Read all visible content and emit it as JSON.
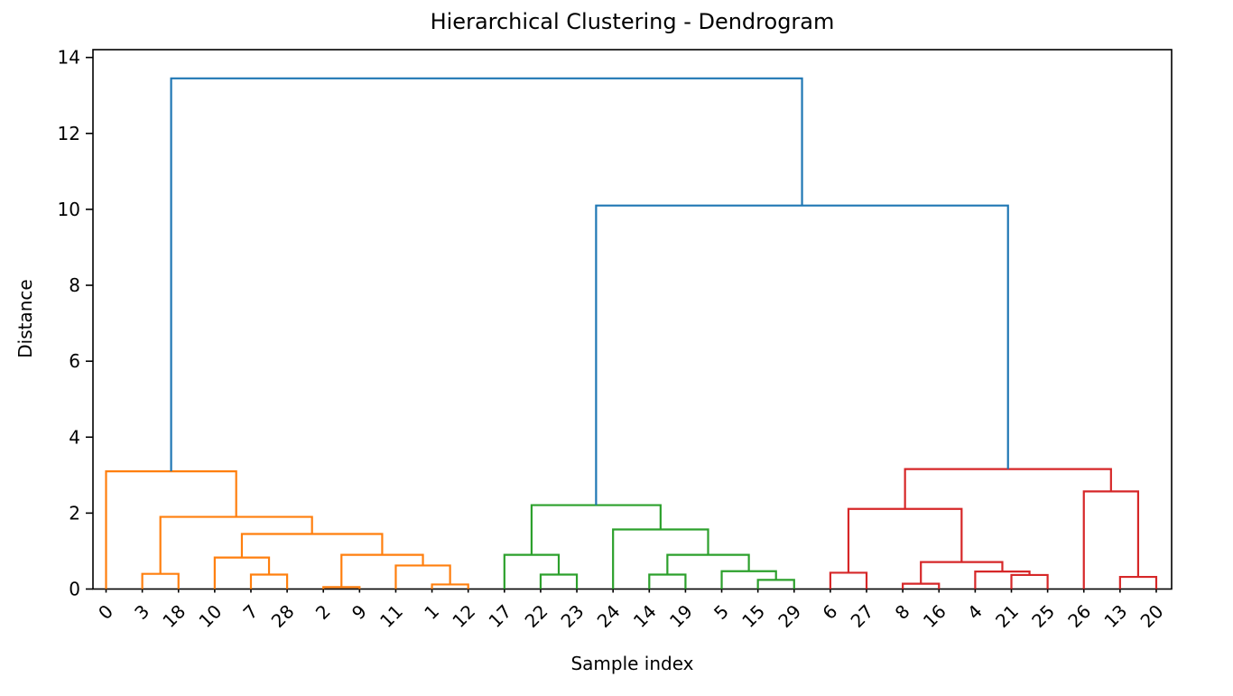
{
  "chart_data": {
    "type": "dendrogram",
    "title": "Hierarchical Clustering - Dendrogram",
    "xlabel": "Sample index",
    "ylabel": "Distance",
    "y_ticks": [
      0,
      2,
      4,
      6,
      8,
      10,
      12,
      14
    ],
    "ylim": [
      0,
      14.2
    ],
    "grid": false,
    "legend": "none",
    "leaf_rotation_deg": 45,
    "leaf_order": [
      "0",
      "3",
      "18",
      "10",
      "7",
      "28",
      "2",
      "9",
      "11",
      "1",
      "12",
      "17",
      "22",
      "23",
      "24",
      "14",
      "19",
      "5",
      "15",
      "29",
      "6",
      "27",
      "8",
      "16",
      "4",
      "21",
      "25",
      "26",
      "13",
      "20"
    ],
    "colors": {
      "above_threshold": "#1f77b4",
      "cluster1": "#ff7f0e",
      "cluster2": "#2ca02c",
      "cluster3": "#d62728",
      "axes": "#000000",
      "text": "#000000"
    },
    "links": [
      {
        "id": "O1",
        "children": [
          "3",
          "18"
        ],
        "height": 0.4,
        "color": "cluster1"
      },
      {
        "id": "O2",
        "children": [
          "7",
          "28"
        ],
        "height": 0.38,
        "color": "cluster1"
      },
      {
        "id": "O3",
        "children": [
          "10",
          "O2"
        ],
        "height": 0.83,
        "color": "cluster1"
      },
      {
        "id": "O4",
        "children": [
          "2",
          "9"
        ],
        "height": 0.05,
        "color": "cluster1"
      },
      {
        "id": "O5",
        "children": [
          "1",
          "12"
        ],
        "height": 0.12,
        "color": "cluster1"
      },
      {
        "id": "O6",
        "children": [
          "11",
          "O5"
        ],
        "height": 0.62,
        "color": "cluster1"
      },
      {
        "id": "O7",
        "children": [
          "O4",
          "O6"
        ],
        "height": 0.9,
        "color": "cluster1"
      },
      {
        "id": "O8",
        "children": [
          "O3",
          "O7"
        ],
        "height": 1.45,
        "color": "cluster1"
      },
      {
        "id": "O9",
        "children": [
          "O1",
          "O8"
        ],
        "height": 1.9,
        "color": "cluster1"
      },
      {
        "id": "O10",
        "children": [
          "0",
          "O9"
        ],
        "height": 3.1,
        "color": "cluster1"
      },
      {
        "id": "G1",
        "children": [
          "22",
          "23"
        ],
        "height": 0.38,
        "color": "cluster2"
      },
      {
        "id": "G2",
        "children": [
          "17",
          "G1"
        ],
        "height": 0.9,
        "color": "cluster2"
      },
      {
        "id": "G3",
        "children": [
          "14",
          "19"
        ],
        "height": 0.38,
        "color": "cluster2"
      },
      {
        "id": "G4",
        "children": [
          "15",
          "29"
        ],
        "height": 0.24,
        "color": "cluster2"
      },
      {
        "id": "G5",
        "children": [
          "5",
          "G4"
        ],
        "height": 0.47,
        "color": "cluster2"
      },
      {
        "id": "G6",
        "children": [
          "G3",
          "G5"
        ],
        "height": 0.9,
        "color": "cluster2"
      },
      {
        "id": "G7",
        "children": [
          "24",
          "G6"
        ],
        "height": 1.57,
        "color": "cluster2"
      },
      {
        "id": "G8",
        "children": [
          "G2",
          "G7"
        ],
        "height": 2.21,
        "color": "cluster2"
      },
      {
        "id": "R1",
        "children": [
          "6",
          "27"
        ],
        "height": 0.43,
        "color": "cluster3"
      },
      {
        "id": "R2",
        "children": [
          "8",
          "16"
        ],
        "height": 0.14,
        "color": "cluster3"
      },
      {
        "id": "R3",
        "children": [
          "21",
          "25"
        ],
        "height": 0.37,
        "color": "cluster3"
      },
      {
        "id": "R4",
        "children": [
          "4",
          "R3"
        ],
        "height": 0.46,
        "color": "cluster3"
      },
      {
        "id": "R5",
        "children": [
          "R2",
          "R4"
        ],
        "height": 0.71,
        "color": "cluster3"
      },
      {
        "id": "R6",
        "children": [
          "R1",
          "R5"
        ],
        "height": 2.11,
        "color": "cluster3"
      },
      {
        "id": "R7",
        "children": [
          "13",
          "20"
        ],
        "height": 0.32,
        "color": "cluster3"
      },
      {
        "id": "R8",
        "children": [
          "26",
          "R7"
        ],
        "height": 2.57,
        "color": "cluster3"
      },
      {
        "id": "R9",
        "children": [
          "R6",
          "R8"
        ],
        "height": 3.16,
        "color": "cluster3"
      },
      {
        "id": "B1",
        "children": [
          "G8",
          "R9"
        ],
        "height": 10.1,
        "color": "above_threshold"
      },
      {
        "id": "B2",
        "children": [
          "O10",
          "B1"
        ],
        "height": 13.45,
        "color": "above_threshold"
      }
    ]
  }
}
